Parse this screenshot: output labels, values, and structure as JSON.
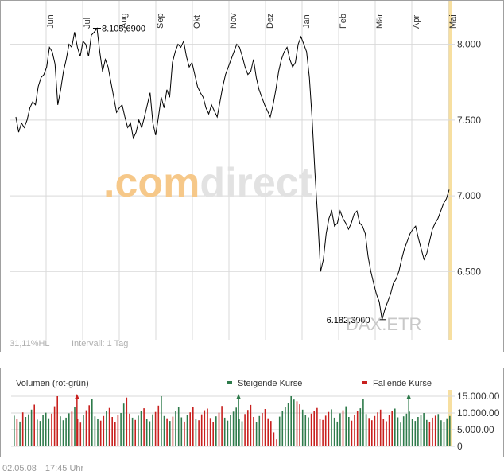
{
  "instrument": "DAX.ETR",
  "watermark": ".comdirect",
  "stats": {
    "hl": "31,11%HL",
    "interval": "Intervall: 1 Tag"
  },
  "footer": {
    "date": "02.05.08",
    "time": "17:45 Uhr"
  },
  "chart_data": [
    {
      "type": "line",
      "title": "",
      "series_name": "DAX.ETR",
      "ylim": [
        6050,
        8250
      ],
      "yticks": [
        6500,
        7000,
        7500,
        8000
      ],
      "ytick_labels": [
        "6.500",
        "7.000",
        "7.500",
        "8.000"
      ],
      "month_labels": [
        "Jun",
        "Jul",
        "Aug",
        "Sep",
        "Okt",
        "Nov",
        "Dez",
        "Jan",
        "Feb",
        "Mär",
        "Apr",
        "Mai"
      ],
      "grid": true,
      "annotations": [
        {
          "label": "8.105,6900",
          "value": 8105.69,
          "type": "high"
        },
        {
          "label": "6.182,3000",
          "value": 6182.3,
          "type": "low"
        }
      ],
      "values": [
        7520,
        7420,
        7480,
        7450,
        7500,
        7580,
        7620,
        7600,
        7720,
        7780,
        7800,
        7850,
        7980,
        7950,
        7870,
        7600,
        7700,
        7820,
        7900,
        8000,
        7980,
        8080,
        7980,
        7920,
        8020,
        8000,
        7920,
        8060,
        8080,
        8105,
        7950,
        7820,
        7900,
        7850,
        7750,
        7650,
        7550,
        7580,
        7600,
        7520,
        7450,
        7480,
        7380,
        7420,
        7500,
        7450,
        7520,
        7600,
        7680,
        7480,
        7400,
        7520,
        7650,
        7580,
        7700,
        7650,
        7880,
        7950,
        8000,
        7980,
        8020,
        7920,
        7850,
        7880,
        7800,
        7720,
        7680,
        7650,
        7580,
        7540,
        7600,
        7560,
        7520,
        7620,
        7720,
        7800,
        7850,
        7900,
        7950,
        8000,
        7980,
        7920,
        7850,
        7800,
        7820,
        7900,
        7780,
        7700,
        7650,
        7600,
        7560,
        7520,
        7600,
        7700,
        7820,
        7900,
        7950,
        7980,
        7900,
        7850,
        7880,
        8000,
        8050,
        8000,
        7950,
        7780,
        7500,
        7150,
        6850,
        6500,
        6580,
        6750,
        6850,
        6900,
        6800,
        6820,
        6900,
        6850,
        6820,
        6780,
        6820,
        6880,
        6900,
        6820,
        6800,
        6750,
        6600,
        6500,
        6420,
        6350,
        6300,
        6182,
        6250,
        6300,
        6350,
        6420,
        6450,
        6500,
        6580,
        6650,
        6700,
        6750,
        6780,
        6800,
        6720,
        6650,
        6580,
        6620,
        6700,
        6780,
        6820,
        6850,
        6900,
        6950,
        6980,
        7040
      ],
      "highlight_last": true
    },
    {
      "type": "bar",
      "title": "Volumen (rot-grün)",
      "legend": [
        {
          "label": "Steigende Kurse",
          "color": "#2d7a4a"
        },
        {
          "label": "Fallende Kurse",
          "color": "#c8201e"
        }
      ],
      "ylim": [
        0,
        15000000
      ],
      "yticks": [
        0,
        5000000,
        10000000,
        15000000
      ],
      "ytick_labels": [
        "0",
        "5.000.00",
        "10.000.00",
        "15.000.00"
      ],
      "values": [
        9200000,
        8100000,
        7400000,
        10200000,
        8800000,
        9600000,
        11000000,
        12500000,
        8000000,
        7600000,
        9300000,
        10100000,
        8400000,
        9800000,
        12000000,
        15500000,
        9000000,
        7800000,
        8600000,
        9900000,
        10400000,
        11800000,
        8300000,
        7100000,
        9500000,
        10800000,
        12300000,
        14200000,
        9000000,
        8200000,
        7700000,
        9100000,
        10600000,
        11500000,
        8800000,
        7300000,
        9400000,
        10000000,
        12800000,
        14600000,
        9800000,
        8600000,
        7900000,
        9200000,
        10700000,
        11400000,
        8300000,
        7500000,
        9600000,
        10300000,
        12200000,
        15100000,
        9100000,
        8400000,
        7600000,
        8900000,
        10500000,
        11700000,
        8700000,
        7400000,
        9300000,
        10200000,
        11900000,
        8100000,
        7800000,
        9600000,
        10800000,
        11300000,
        8500000,
        7200000,
        9000000,
        10100000,
        12100000,
        8600000,
        7700000,
        9400000,
        10400000,
        11600000,
        8200000,
        7500000,
        9700000,
        10900000,
        12400000,
        8800000,
        7300000,
        9100000,
        10000000,
        11200000,
        8400000,
        7600000,
        4200000,
        2100000,
        8900000,
        10600000,
        11800000,
        12900000,
        15200000,
        14000000,
        13500000,
        12600000,
        11000000,
        9500000,
        8700000,
        9800000,
        10700000,
        11500000,
        8300000,
        7900000,
        9200000,
        10300000,
        11100000,
        8600000,
        7400000,
        9900000,
        10800000,
        12000000,
        8800000,
        7700000,
        9300000,
        10500000,
        11400000,
        14100000,
        9700000,
        8500000,
        7800000,
        9100000,
        10200000,
        11000000,
        8200000,
        7500000,
        9400000,
        10600000,
        11300000,
        8700000,
        7100000,
        9000000,
        9800000,
        10400000,
        8100000,
        7600000,
        8800000,
        9500000,
        10000000,
        7900000,
        7300000,
        8600000,
        9200000,
        9700000,
        7800000,
        7200000,
        8400000,
        9100000
      ],
      "arrows": [
        {
          "index": 22,
          "direction": "up"
        },
        {
          "index": 78,
          "direction": "up"
        },
        {
          "index": 137,
          "direction": "up"
        }
      ]
    }
  ],
  "colors": {
    "line": "#000000",
    "grid": "#d9d9d9",
    "frame": "#a0a0a0",
    "highlight": "#f7dfa0",
    "up": "#2d7a4a",
    "down": "#c8201e",
    "watermark_orange": "#f6c889",
    "watermark_grey": "#e2e2e2"
  }
}
